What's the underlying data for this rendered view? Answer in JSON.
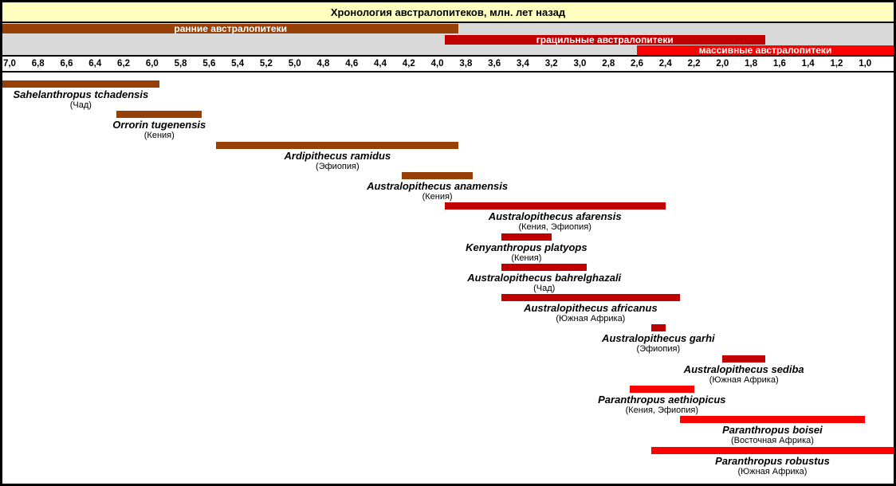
{
  "colors": {
    "early": "#964007",
    "gracile": "#C00000",
    "massive": "#FF0000",
    "title_bg": "#FFFFC0",
    "bands_bg": "#D9D9D9",
    "band_label_text": "#FFFFFF",
    "border": "#000000",
    "text": "#000000"
  },
  "chart_data": {
    "type": "bar",
    "subtype": "horizontal-timeline-gantt",
    "title": "Хронология австралопитеков, млн. лет назад",
    "x_unit": "млн. лет назад",
    "x_domain": [
      7.05,
      0.8
    ],
    "x_axis_reversed": true,
    "grid": false,
    "legend_position": "top-bands",
    "x_ticks": [
      7.0,
      6.8,
      6.6,
      6.4,
      6.2,
      6.0,
      5.8,
      5.6,
      5.4,
      5.2,
      5.0,
      4.8,
      4.6,
      4.4,
      4.2,
      4.0,
      3.8,
      3.6,
      3.4,
      3.2,
      3.0,
      2.8,
      2.6,
      2.4,
      2.2,
      2.0,
      1.8,
      1.6,
      1.4,
      1.2,
      1.0
    ],
    "x_tick_labels": [
      "7,0",
      "6,8",
      "6,6",
      "6,4",
      "6,2",
      "6,0",
      "5,8",
      "5,6",
      "5,4",
      "5,2",
      "5,0",
      "4,8",
      "4,6",
      "4,4",
      "4,2",
      "4,0",
      "3,8",
      "3,6",
      "3,4",
      "3,2",
      "3,0",
      "2,8",
      "2,6",
      "2,4",
      "2,2",
      "2,0",
      "1,8",
      "1,6",
      "1,4",
      "1,2",
      "1,0"
    ],
    "groups": [
      {
        "key": "early",
        "label": "ранние австралопитеки",
        "start": 7.05,
        "end": 3.85
      },
      {
        "key": "gracile",
        "label": "грацильные австралопитеки",
        "start": 3.95,
        "end": 1.7
      },
      {
        "key": "massive",
        "label": "массивные австралопитеки",
        "start": 2.6,
        "end": 0.8
      }
    ],
    "species": [
      {
        "name": "Sahelanthropus tchadensis",
        "location": "(Чад)",
        "group": "early",
        "start": 7.05,
        "end": 5.95
      },
      {
        "name": "Orrorin tugenensis",
        "location": "(Кения)",
        "group": "early",
        "start": 6.25,
        "end": 5.65
      },
      {
        "name": "Ardipithecus ramidus",
        "location": "(Эфиопия)",
        "group": "early",
        "start": 5.55,
        "end": 3.85
      },
      {
        "name": "Australopithecus anamensis",
        "location": "(Кения)",
        "group": "early",
        "start": 4.25,
        "end": 3.75
      },
      {
        "name": "Australopithecus afarensis",
        "location": "(Кения, Эфиопия)",
        "group": "gracile",
        "start": 3.95,
        "end": 2.4
      },
      {
        "name": "Kenyanthropus platyops",
        "location": "(Кения)",
        "group": "gracile",
        "start": 3.55,
        "end": 3.2
      },
      {
        "name": "Australopithecus bahrelghazali",
        "location": "(Чад)",
        "group": "gracile",
        "start": 3.55,
        "end": 2.95
      },
      {
        "name": "Australopithecus africanus",
        "location": "(Южная Африка)",
        "group": "gracile",
        "start": 3.55,
        "end": 2.3
      },
      {
        "name": "Australopithecus garhi",
        "location": "(Эфиопия)",
        "group": "gracile",
        "start": 2.5,
        "end": 2.4
      },
      {
        "name": "Australopithecus sediba",
        "location": "(Южная Африка)",
        "group": "gracile",
        "start": 2.0,
        "end": 1.7
      },
      {
        "name": "Paranthropus aethiopicus",
        "location": "(Кения, Эфиопия)",
        "group": "massive",
        "start": 2.65,
        "end": 2.2
      },
      {
        "name": "Paranthropus boisei",
        "location": "(Восточная Африка)",
        "group": "massive",
        "start": 2.3,
        "end": 1.0
      },
      {
        "name": "Paranthropus robustus",
        "location": "(Южная Африка)",
        "group": "massive",
        "start": 2.5,
        "end": 0.8
      }
    ]
  }
}
